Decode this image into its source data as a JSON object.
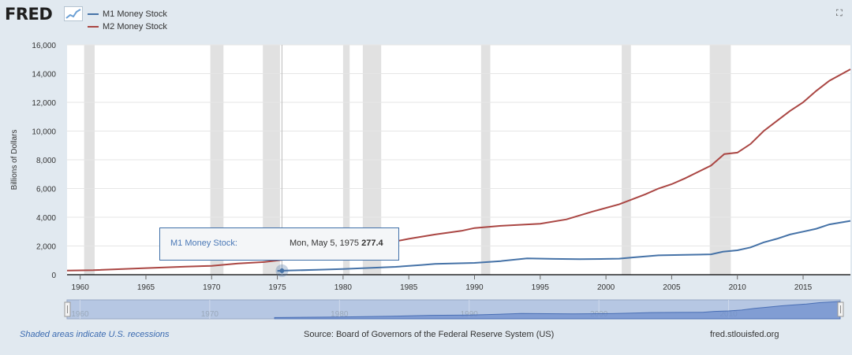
{
  "header": {
    "logo_text": "FRED",
    "fullscreen_icon": "expand-icon"
  },
  "tooltip": {
    "series": "M1 Money Stock:",
    "date": "Mon, May 5, 1975",
    "value": "277.4"
  },
  "footer": {
    "recessions_note": "Shaded areas indicate U.S. recessions",
    "source": "Source: Board of Governors of the Federal Reserve System (US)",
    "site": "fred.stlouisfed.org"
  },
  "navigator": {
    "ticks": [
      "1960",
      "1970",
      "1980",
      "1990",
      "2000",
      "2010"
    ]
  },
  "chart_data": {
    "type": "line",
    "title": "",
    "xlabel": "",
    "ylabel": "Billions of Dollars",
    "xlim": [
      1959,
      2018.6
    ],
    "ylim": [
      0,
      16000
    ],
    "y_ticks": [
      0,
      2000,
      4000,
      6000,
      8000,
      10000,
      12000,
      14000,
      16000
    ],
    "y_tick_labels": [
      "0",
      "2,000",
      "4,000",
      "6,000",
      "8,000",
      "10,000",
      "12,000",
      "14,000",
      "16,000"
    ],
    "x_ticks": [
      1960,
      1965,
      1970,
      1975,
      1980,
      1985,
      1990,
      1995,
      2000,
      2005,
      2010,
      2015
    ],
    "x_tick_labels": [
      "1960",
      "1965",
      "1970",
      "1975",
      "1980",
      "1985",
      "1990",
      "1995",
      "2000",
      "2005",
      "2010",
      "2015"
    ],
    "grid": "horizontal",
    "legend": "top-left",
    "recessions": [
      [
        1960.3,
        1961.1
      ],
      [
        1969.9,
        1970.9
      ],
      [
        1973.9,
        1975.2
      ],
      [
        1980.0,
        1980.5
      ],
      [
        1981.5,
        1982.9
      ],
      [
        1990.5,
        1991.2
      ],
      [
        2001.2,
        2001.9
      ],
      [
        2007.9,
        2009.5
      ]
    ],
    "series": [
      {
        "name": "M1 Money Stock",
        "color": "#4572a7",
        "points": [
          [
            1975.0,
            270
          ],
          [
            1975.35,
            277.4
          ],
          [
            1978,
            340
          ],
          [
            1980,
            400
          ],
          [
            1982,
            470
          ],
          [
            1984,
            550
          ],
          [
            1986,
            680
          ],
          [
            1987,
            750
          ],
          [
            1990,
            820
          ],
          [
            1992,
            950
          ],
          [
            1994,
            1140
          ],
          [
            1996,
            1100
          ],
          [
            1998,
            1080
          ],
          [
            2000,
            1100
          ],
          [
            2001,
            1120
          ],
          [
            2002,
            1200
          ],
          [
            2004,
            1350
          ],
          [
            2006,
            1380
          ],
          [
            2008,
            1420
          ],
          [
            2008.9,
            1600
          ],
          [
            2010,
            1700
          ],
          [
            2011,
            1900
          ],
          [
            2012,
            2250
          ],
          [
            2013,
            2500
          ],
          [
            2014,
            2800
          ],
          [
            2015,
            3000
          ],
          [
            2016,
            3200
          ],
          [
            2017,
            3500
          ],
          [
            2018.6,
            3750
          ]
        ]
      },
      {
        "name": "M2 Money Stock",
        "color": "#aa4643",
        "points": [
          [
            1959,
            290
          ],
          [
            1961,
            320
          ],
          [
            1965,
            460
          ],
          [
            1968,
            560
          ],
          [
            1970,
            620
          ],
          [
            1972,
            780
          ],
          [
            1974,
            880
          ],
          [
            1975,
            990
          ],
          [
            1978,
            1370
          ],
          [
            1980,
            1570
          ],
          [
            1983,
            2150
          ],
          [
            1985,
            2500
          ],
          [
            1987,
            2800
          ],
          [
            1989,
            3050
          ],
          [
            1990,
            3250
          ],
          [
            1992,
            3400
          ],
          [
            1995,
            3550
          ],
          [
            1997,
            3850
          ],
          [
            1999,
            4400
          ],
          [
            2001,
            4900
          ],
          [
            2003,
            5600
          ],
          [
            2004,
            6000
          ],
          [
            2005,
            6300
          ],
          [
            2006,
            6700
          ],
          [
            2007,
            7150
          ],
          [
            2008,
            7600
          ],
          [
            2009,
            8400
          ],
          [
            2010,
            8500
          ],
          [
            2011,
            9100
          ],
          [
            2012,
            10000
          ],
          [
            2013,
            10700
          ],
          [
            2014,
            11400
          ],
          [
            2015,
            12000
          ],
          [
            2016,
            12800
          ],
          [
            2017,
            13500
          ],
          [
            2018.6,
            14300
          ]
        ]
      }
    ]
  }
}
